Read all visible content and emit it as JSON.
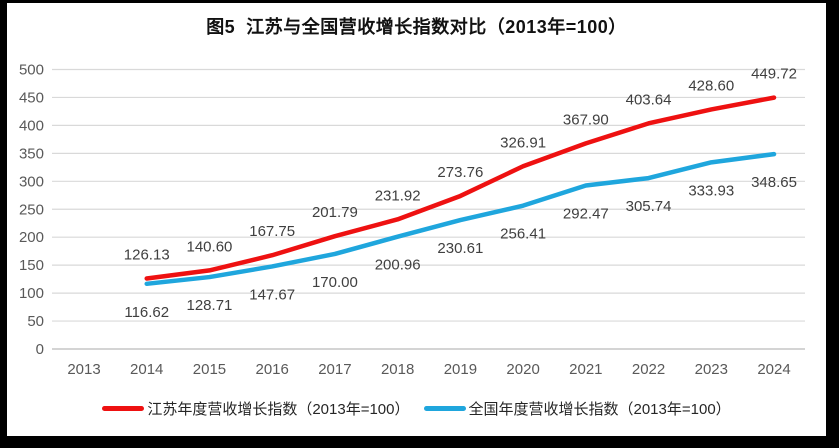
{
  "title": "图5  江苏与全国营收增长指数对比（2013年=100）",
  "chart_data": {
    "type": "line",
    "title": "图5  江苏与全国营收增长指数对比（2013年=100）",
    "categories": [
      "2013",
      "2014",
      "2015",
      "2016",
      "2017",
      "2018",
      "2019",
      "2020",
      "2021",
      "2022",
      "2023",
      "2024"
    ],
    "xlabel": "",
    "ylabel": "",
    "ylim": [
      0,
      500
    ],
    "y_ticks": [
      0,
      50,
      100,
      150,
      200,
      250,
      300,
      350,
      400,
      450,
      500
    ],
    "grid": true,
    "legend_position": "bottom",
    "series": [
      {
        "name": "江苏年度营收增长指数（2013年=100）",
        "color": "#ee1111",
        "start_index": 1,
        "label_position": "above",
        "values": [
          126.13,
          140.6,
          167.75,
          201.79,
          231.92,
          273.76,
          326.91,
          367.9,
          403.64,
          428.6,
          449.72
        ],
        "labels": [
          "126.13",
          "140.60",
          "167.75",
          "201.79",
          "231.92",
          "273.76",
          "326.91",
          "367.90",
          "403.64",
          "428.60",
          "449.72"
        ]
      },
      {
        "name": "全国年度营收增长指数（2013年=100）",
        "color": "#1fa6dd",
        "start_index": 1,
        "label_position": "below",
        "values": [
          116.62,
          128.71,
          147.67,
          170.0,
          200.96,
          230.61,
          256.41,
          292.47,
          305.74,
          333.93,
          348.65
        ],
        "labels": [
          "116.62",
          "128.71",
          "147.67",
          "170.00",
          "200.96",
          "230.61",
          "256.41",
          "292.47",
          "305.74",
          "333.93",
          "348.65"
        ]
      }
    ],
    "colors": {
      "grid": "#d9d9d9",
      "axis": "#c6c6c6",
      "tick_label": "#595959",
      "data_label": "#404040",
      "background": "#ffffff",
      "frame": "#000000"
    }
  },
  "legend": [
    {
      "label": "江苏年度营收增长指数（2013年=100）",
      "color": "#ee1111"
    },
    {
      "label": "全国年度营收增长指数（2013年=100）",
      "color": "#1fa6dd"
    }
  ]
}
